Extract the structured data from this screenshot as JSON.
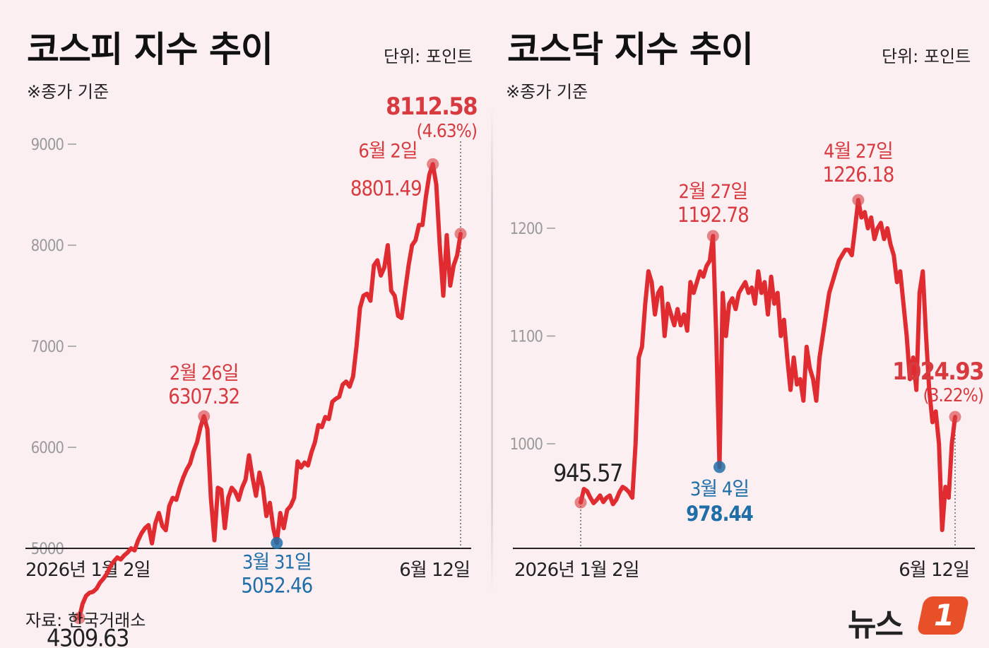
{
  "source": "자료: 한국거래소",
  "logo_text": "뉴스",
  "logo_badge": "1",
  "colors": {
    "line": "#e02b30",
    "peak": "#d73a3f",
    "low": "#1f6ea8",
    "axis_label": "#9a9a9a"
  },
  "chart_data": [
    {
      "type": "line",
      "title": "코스피 지수 추이",
      "unit": "단위: 포인트",
      "note": "※종가 기준",
      "x_start_label": "2026년 1월 2일",
      "x_end_label": "6월 12일",
      "ylim": [
        4150,
        9500
      ],
      "yticks": [
        5000,
        6000,
        7000,
        8000,
        9000
      ],
      "ytick_labels": [
        "5000",
        "6000",
        "7000",
        "8000",
        "9000"
      ],
      "series": [
        {
          "values": [
            4309.63,
            4450,
            4530,
            4560,
            4570,
            4600,
            4660,
            4700,
            4750,
            4820,
            4870,
            4910,
            4890,
            4930,
            4960,
            5000,
            4980,
            5080,
            5150,
            5200,
            5230,
            5050,
            5250,
            5350,
            5220,
            5180,
            5420,
            5500,
            5480,
            5600,
            5700,
            5780,
            5840,
            5960,
            6050,
            6200,
            6307.32,
            6180,
            5500,
            5080,
            5600,
            5580,
            5200,
            5500,
            5600,
            5560,
            5480,
            5600,
            5680,
            5920,
            5700,
            5520,
            5750,
            5600,
            5320,
            5450,
            5200,
            5052.46,
            5350,
            5200,
            5380,
            5420,
            5500,
            5860,
            5800,
            5850,
            5820,
            5950,
            6050,
            6220,
            6200,
            6300,
            6280,
            6450,
            6480,
            6500,
            6620,
            6650,
            6600,
            6700,
            7000,
            7380,
            7500,
            7520,
            7450,
            7800,
            7850,
            7700,
            7780,
            8000,
            7550,
            7500,
            7300,
            7280,
            7550,
            7800,
            8000,
            8050,
            8200,
            8200,
            8480,
            8700,
            8801.49,
            8600,
            8000,
            7500,
            8100,
            7600,
            7800,
            7900,
            8112.58
          ]
        }
      ],
      "annotations": [
        {
          "date": "",
          "value": "4309.63",
          "kind": "start"
        },
        {
          "date": "2월 26일",
          "value": "6307.32",
          "kind": "peak"
        },
        {
          "date": "3월 31일",
          "value": "5052.46",
          "kind": "low"
        },
        {
          "date": "6월 2일",
          "value": "8801.49",
          "kind": "peak"
        },
        {
          "date": "",
          "value": "8112.58",
          "change": "(4.63%)",
          "kind": "end"
        }
      ]
    },
    {
      "type": "line",
      "title": "코스닥 지수 추이",
      "unit": "단위: 포인트",
      "note": "※종가 기준",
      "x_start_label": "2026년 1월 2일",
      "x_end_label": "6월 12일",
      "ylim": [
        900,
        1295
      ],
      "yticks": [
        1000,
        1100,
        1200
      ],
      "ytick_labels": [
        "1000",
        "1100",
        "1200"
      ],
      "series": [
        {
          "values": [
            945.57,
            958,
            956,
            950,
            945,
            948,
            952,
            946,
            950,
            952,
            944,
            948,
            955,
            960,
            958,
            955,
            950,
            1000,
            1080,
            1090,
            1130,
            1160,
            1150,
            1120,
            1140,
            1145,
            1100,
            1130,
            1120,
            1110,
            1125,
            1110,
            1120,
            1105,
            1150,
            1140,
            1150,
            1160,
            1155,
            1165,
            1170,
            1192.78,
            1100,
            978.44,
            1140,
            1100,
            1130,
            1135,
            1125,
            1140,
            1145,
            1150,
            1140,
            1145,
            1130,
            1160,
            1140,
            1150,
            1120,
            1155,
            1130,
            1140,
            1100,
            1115,
            1080,
            1050,
            1080,
            1055,
            1060,
            1040,
            1090,
            1070,
            1060,
            1040,
            1080,
            1100,
            1120,
            1140,
            1150,
            1160,
            1170,
            1175,
            1180,
            1180,
            1175,
            1200,
            1226.18,
            1210,
            1215,
            1200,
            1210,
            1190,
            1200,
            1205,
            1190,
            1200,
            1185,
            1175,
            1150,
            1160,
            1130,
            1100,
            1060,
            1080,
            1050,
            1140,
            1160,
            1100,
            1050,
            1020,
            1030,
            1000,
            920,
            960,
            950,
            1000,
            1024.93
          ]
        }
      ],
      "annotations": [
        {
          "date": "",
          "value": "945.57",
          "kind": "start"
        },
        {
          "date": "2월 27일",
          "value": "1192.78",
          "kind": "peak"
        },
        {
          "date": "3월 4일",
          "value": "978.44",
          "kind": "low"
        },
        {
          "date": "4월 27일",
          "value": "1226.18",
          "kind": "peak"
        },
        {
          "date": "",
          "value": "1024.93",
          "change": "(3.22%)",
          "kind": "end"
        }
      ]
    }
  ]
}
